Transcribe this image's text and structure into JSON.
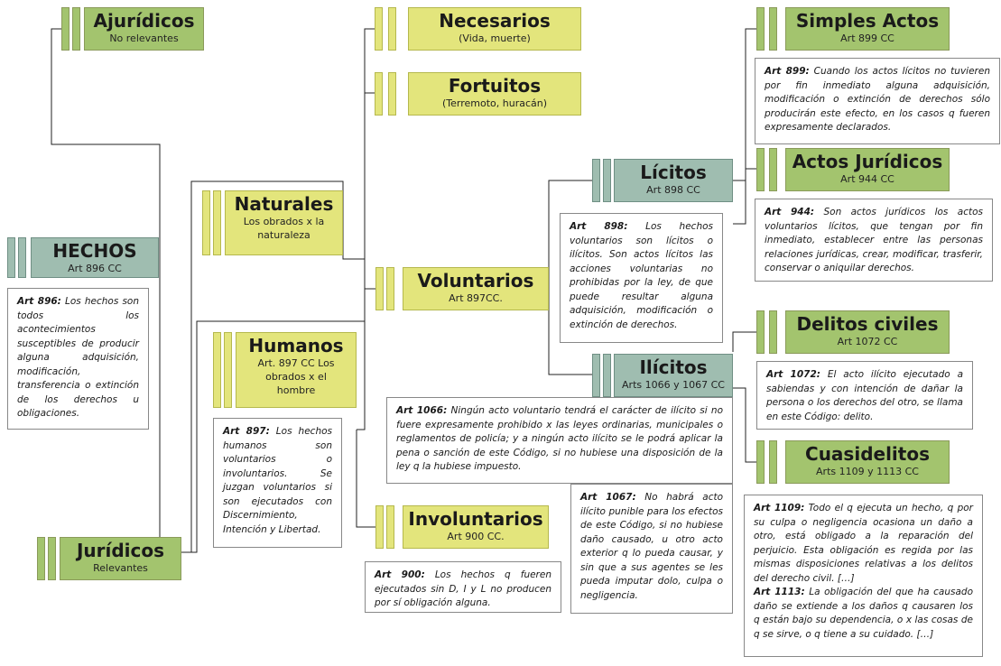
{
  "nodes": {
    "ajuridicos": {
      "title": "Ajurídicos",
      "subtitle": "No relevantes"
    },
    "hechos": {
      "title": "HECHOS",
      "subtitle": "Art 896 CC"
    },
    "juridicos": {
      "title": "Jurídicos",
      "subtitle": "Relevantes"
    },
    "naturales": {
      "title": "Naturales",
      "subtitle": "Los obrados  x la naturaleza"
    },
    "humanos": {
      "title": "Humanos",
      "subtitle": "Art. 897 CC Los obrados  x el hombre"
    },
    "necesarios": {
      "title": "Necesarios",
      "subtitle": "(Vida, muerte)"
    },
    "fortuitos": {
      "title": "Fortuitos",
      "subtitle": "(Terremoto, huracán)"
    },
    "voluntarios": {
      "title": "Voluntarios",
      "subtitle": "Art 897CC."
    },
    "involuntarios": {
      "title": "Involuntarios",
      "subtitle": "Art 900 CC."
    },
    "licitos": {
      "title": "Lícitos",
      "subtitle": "Art 898 CC"
    },
    "ilicitos": {
      "title": "Ilícitos",
      "subtitle": "Arts 1066 y 1067 CC"
    },
    "simples_actos": {
      "title": "Simples Actos",
      "subtitle": "Art 899 CC"
    },
    "actos_juridicos": {
      "title": "Actos Jurídicos",
      "subtitle": "Art 944 CC"
    },
    "delitos_civiles": {
      "title": "Delitos civiles",
      "subtitle": "Art 1072 CC"
    },
    "cuasidelitos": {
      "title": "Cuasidelitos",
      "subtitle": "Arts 1109 y 1113 CC"
    }
  },
  "notes": {
    "art896": {
      "ref": "Art 896:",
      "text": " Los hechos son todos los acontecimientos susceptibles de producir alguna adquisición, modificación, transferencia o extinción de los derechos u obligaciones."
    },
    "art897": {
      "ref": "Art 897:",
      "text": " Los hechos humanos son voluntarios o involuntarios. Se juzgan voluntarios si son ejecutados con Discernimiento, Intención y Libertad."
    },
    "art898": {
      "ref": "Art 898:",
      "text": " Los hechos voluntarios son lícitos o ilícitos. Son actos lícitos las acciones voluntarias no prohibidas por la ley, de que puede resultar alguna adquisición, modificación o extinción de derechos."
    },
    "art899": {
      "ref": "Art 899:",
      "text": " Cuando los actos lícitos no tuvieren por fin inmediato alguna adquisición, modificación o extinción de derechos sólo producirán este efecto, en los casos q fueren expresamente declarados."
    },
    "art944": {
      "ref": "Art 944:",
      "text": " Son actos jurídicos los actos voluntarios lícitos, que tengan por fin inmediato, establecer entre las personas relaciones jurídicas, crear, modificar, trasferir, conservar o aniquilar derechos."
    },
    "art1066": {
      "ref": "Art 1066:",
      "text": " Ningún acto voluntario tendrá el carácter de ilícito si no fuere expresamente prohibido x las leyes ordinarias, municipales o reglamentos de policía; y a ningún acto ilícito se le podrá aplicar la pena o sanción de este Código, si no hubiese una disposición de la ley q la hubiese impuesto."
    },
    "art1067": {
      "ref": "Art 1067:",
      "text": " No habrá acto ilícito punible para los efectos de este Código, si no hubiese daño causado, u otro acto exterior q lo pueda causar, y sin que a sus agentes se les pueda imputar dolo, culpa o negligencia."
    },
    "art900": {
      "ref": "Art 900:",
      "text": " Los hechos q fueren ejecutados sin D, I y L no producen por sí obligación alguna."
    },
    "art1072": {
      "ref": "Art 1072:",
      "text": " El acto ilícito ejecutado a sabiendas y con intención de dañar la persona o los derechos del otro, se llama en este Código: delito."
    },
    "art1109": {
      "ref": "Art 1109:",
      "text": " Todo el q ejecuta un hecho, q por su culpa o negligencia ocasiona un daño a otro, está obligado a la reparación del perjuicio. Esta obligación es regida por las mismas disposiciones relativas a los delitos del derecho civil. […]"
    },
    "art1113": {
      "ref": "Art 1113:",
      "text": " La obligación del que ha causado daño se extiende a los daños q causaren los q están bajo su dependencia, o x las cosas de q se sirve, o q tiene a su cuidado. […]"
    }
  }
}
